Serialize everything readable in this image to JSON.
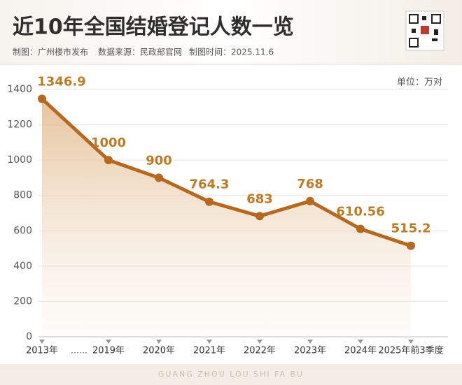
{
  "chart_data": {
    "type": "line",
    "title": "近10年全国结婚登记人数一览",
    "subtitle": [
      "制图：广州楼市发布",
      "数据来源：民政部官网",
      "制图时间：2025.11.6"
    ],
    "unit": "单位：万对",
    "x_break_label": "……",
    "footer": "GUANG ZHOU LOU SHI FA BU",
    "categories": [
      "2013年",
      "2019年",
      "2020年",
      "2021年",
      "2022年",
      "2023年",
      "2024年",
      "2025年前3季度"
    ],
    "values": [
      1346.9,
      1000,
      900,
      764.3,
      683,
      768,
      610.56,
      515.2
    ],
    "color": "#b8671c",
    "ylim": [
      0,
      1400
    ],
    "yticks": [
      0,
      200,
      400,
      600,
      800,
      1000,
      1200,
      1400
    ],
    "grid": true
  }
}
